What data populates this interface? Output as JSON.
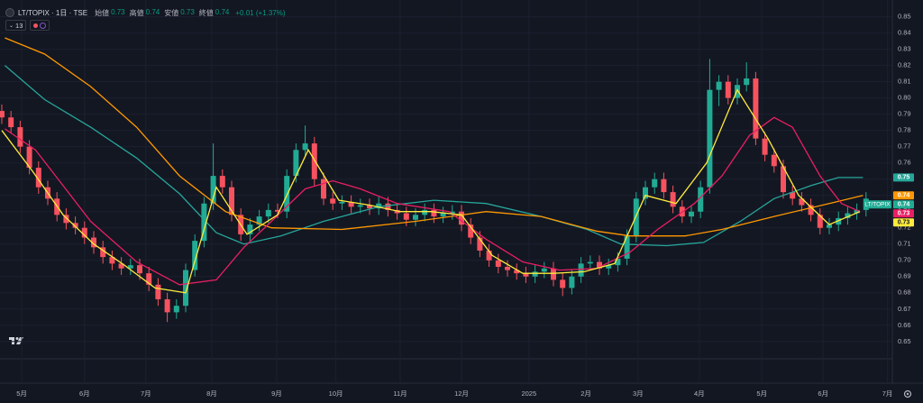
{
  "chart_data": {
    "type": "candlestick",
    "title": "LT/TOPIX · 1日 · TSE",
    "header_fields": [
      {
        "label": "始値",
        "value": "0.73"
      },
      {
        "label": "高値",
        "value": "0.74"
      },
      {
        "label": "安値",
        "value": "0.73"
      },
      {
        "label": "終値",
        "value": "0.74"
      }
    ],
    "change": "+0.01 (+1.37%)",
    "indicator": "13",
    "symbol_tag": "LT/TOPIX",
    "grid": true,
    "xlim": [
      0,
      290
    ],
    "ylim": [
      0.641,
      0.857
    ],
    "xticks": [
      {
        "value": 6.5,
        "label": "5月"
      },
      {
        "value": 27,
        "label": "6月"
      },
      {
        "value": 47,
        "label": "7月"
      },
      {
        "value": 68.5,
        "label": "8月"
      },
      {
        "value": 89.7,
        "label": "9月"
      },
      {
        "value": 109,
        "label": "10月"
      },
      {
        "value": 130,
        "label": "11月"
      },
      {
        "value": 150,
        "label": "12月"
      },
      {
        "value": 172,
        "label": "2025"
      },
      {
        "value": 190.6,
        "label": "2月"
      },
      {
        "value": 207.6,
        "label": "3月"
      },
      {
        "value": 227.6,
        "label": "4月"
      },
      {
        "value": 248,
        "label": "5月"
      },
      {
        "value": 268,
        "label": "6月"
      },
      {
        "value": 289,
        "label": "7月"
      }
    ],
    "yticks": [
      0.65,
      0.66,
      0.67,
      0.68,
      0.69,
      {
        "value": 0.7,
        "label": "0.70"
      },
      0.71,
      0.72,
      0.73,
      0.74,
      0.75,
      0.76,
      0.77,
      0.78,
      0.79,
      {
        "value": 0.8,
        "label": "0.80"
      },
      0.81,
      0.82,
      0.83,
      0.84,
      0.85
    ],
    "candles": {
      "up_color": "#22ab94",
      "down_color": "#f7525f",
      "last_label": "0.74",
      "x": [
        0,
        3,
        6,
        9,
        12,
        15,
        18,
        21,
        24,
        27,
        30,
        33,
        36,
        39,
        42,
        45,
        48,
        51,
        54,
        57,
        60,
        63,
        66,
        69,
        72,
        75,
        78,
        81,
        84,
        87,
        90,
        93,
        96,
        99,
        102,
        105,
        108,
        111,
        114,
        117,
        120,
        123,
        126,
        129,
        132,
        135,
        138,
        141,
        144,
        147,
        150,
        153,
        156,
        159,
        162,
        165,
        168,
        171,
        174,
        177,
        180,
        183,
        186,
        189,
        192,
        195,
        198,
        201,
        204,
        207,
        210,
        213,
        216,
        219,
        222,
        225,
        228,
        231,
        234,
        237,
        240,
        243,
        246,
        249,
        252,
        255,
        258,
        261,
        264,
        267,
        270,
        273,
        276,
        279,
        282
      ],
      "open": [
        0.792,
        0.788,
        0.782,
        0.77,
        0.757,
        0.745,
        0.738,
        0.728,
        0.723,
        0.72,
        0.714,
        0.708,
        0.702,
        0.698,
        0.695,
        0.697,
        0.692,
        0.685,
        0.676,
        0.668,
        0.672,
        0.694,
        0.712,
        0.735,
        0.752,
        0.745,
        0.728,
        0.716,
        0.722,
        0.727,
        0.731,
        0.73,
        0.752,
        0.768,
        0.772,
        0.75,
        0.738,
        0.735,
        0.736,
        0.733,
        0.734,
        0.732,
        0.735,
        0.731,
        0.729,
        0.725,
        0.728,
        0.731,
        0.727,
        0.729,
        0.73,
        0.722,
        0.714,
        0.706,
        0.7,
        0.696,
        0.694,
        0.692,
        0.69,
        0.693,
        0.695,
        0.688,
        0.683,
        0.69,
        0.698,
        0.699,
        0.695,
        0.697,
        0.701,
        0.715,
        0.738,
        0.745,
        0.75,
        0.742,
        0.733,
        0.727,
        0.73,
        0.745,
        0.805,
        0.81,
        0.8,
        0.808,
        0.812,
        0.775,
        0.765,
        0.758,
        0.742,
        0.738,
        0.734,
        0.728,
        0.72,
        0.722,
        0.726,
        0.729,
        0.731
      ],
      "high": [
        0.796,
        0.792,
        0.786,
        0.774,
        0.761,
        0.749,
        0.742,
        0.732,
        0.727,
        0.724,
        0.718,
        0.712,
        0.706,
        0.702,
        0.701,
        0.701,
        0.696,
        0.689,
        0.68,
        0.676,
        0.698,
        0.716,
        0.739,
        0.772,
        0.756,
        0.749,
        0.732,
        0.726,
        0.731,
        0.735,
        0.735,
        0.756,
        0.772,
        0.783,
        0.776,
        0.754,
        0.742,
        0.74,
        0.74,
        0.738,
        0.738,
        0.739,
        0.739,
        0.735,
        0.733,
        0.732,
        0.735,
        0.735,
        0.733,
        0.734,
        0.734,
        0.726,
        0.718,
        0.71,
        0.704,
        0.7,
        0.698,
        0.696,
        0.697,
        0.699,
        0.699,
        0.692,
        0.694,
        0.702,
        0.703,
        0.703,
        0.701,
        0.705,
        0.719,
        0.742,
        0.749,
        0.754,
        0.754,
        0.746,
        0.737,
        0.734,
        0.749,
        0.824,
        0.814,
        0.814,
        0.812,
        0.822,
        0.816,
        0.779,
        0.769,
        0.762,
        0.746,
        0.742,
        0.738,
        0.732,
        0.726,
        0.73,
        0.733,
        0.735,
        0.742
      ],
      "low": [
        0.784,
        0.778,
        0.766,
        0.753,
        0.741,
        0.734,
        0.724,
        0.719,
        0.716,
        0.71,
        0.704,
        0.698,
        0.694,
        0.691,
        0.691,
        0.688,
        0.681,
        0.672,
        0.662,
        0.664,
        0.668,
        0.69,
        0.708,
        0.731,
        0.741,
        0.724,
        0.712,
        0.712,
        0.718,
        0.723,
        0.726,
        0.726,
        0.748,
        0.764,
        0.746,
        0.734,
        0.731,
        0.731,
        0.729,
        0.729,
        0.728,
        0.728,
        0.727,
        0.725,
        0.721,
        0.721,
        0.724,
        0.723,
        0.723,
        0.725,
        0.718,
        0.71,
        0.702,
        0.696,
        0.692,
        0.69,
        0.688,
        0.686,
        0.686,
        0.689,
        0.684,
        0.678,
        0.679,
        0.686,
        0.694,
        0.691,
        0.691,
        0.693,
        0.697,
        0.711,
        0.734,
        0.741,
        0.738,
        0.729,
        0.723,
        0.723,
        0.726,
        0.741,
        0.795,
        0.796,
        0.796,
        0.804,
        0.771,
        0.761,
        0.754,
        0.738,
        0.734,
        0.73,
        0.724,
        0.716,
        0.716,
        0.718,
        0.722,
        0.725,
        0.727
      ],
      "close": [
        0.788,
        0.782,
        0.77,
        0.757,
        0.745,
        0.738,
        0.728,
        0.723,
        0.72,
        0.714,
        0.708,
        0.702,
        0.698,
        0.695,
        0.697,
        0.692,
        0.685,
        0.676,
        0.668,
        0.672,
        0.694,
        0.712,
        0.735,
        0.752,
        0.745,
        0.728,
        0.716,
        0.722,
        0.727,
        0.731,
        0.73,
        0.752,
        0.768,
        0.772,
        0.75,
        0.738,
        0.735,
        0.736,
        0.733,
        0.734,
        0.732,
        0.735,
        0.731,
        0.729,
        0.725,
        0.728,
        0.731,
        0.727,
        0.729,
        0.73,
        0.722,
        0.714,
        0.706,
        0.7,
        0.696,
        0.694,
        0.692,
        0.69,
        0.693,
        0.695,
        0.688,
        0.683,
        0.69,
        0.698,
        0.699,
        0.695,
        0.697,
        0.701,
        0.715,
        0.738,
        0.745,
        0.75,
        0.742,
        0.733,
        0.727,
        0.73,
        0.745,
        0.805,
        0.81,
        0.8,
        0.808,
        0.812,
        0.775,
        0.765,
        0.758,
        0.742,
        0.738,
        0.734,
        0.728,
        0.72,
        0.722,
        0.726,
        0.729,
        0.731,
        0.738
      ]
    },
    "lines": [
      {
        "color": "#26a69a",
        "last_label": "0.75",
        "x": [
          1,
          14,
          29,
          44,
          58,
          70,
          79,
          91,
          105,
          123,
          141,
          158,
          176,
          191,
          202,
          217,
          229,
          241,
          252,
          264,
          273,
          281
        ],
        "values": [
          0.82,
          0.799,
          0.782,
          0.763,
          0.741,
          0.717,
          0.71,
          0.715,
          0.724,
          0.733,
          0.737,
          0.735,
          0.727,
          0.719,
          0.71,
          0.709,
          0.711,
          0.724,
          0.738,
          0.746,
          0.751,
          0.751
        ]
      },
      {
        "color": "#ff9800",
        "last_label": "0.74",
        "x": [
          1,
          14,
          29,
          44,
          58,
          73,
          88,
          111,
          135,
          158,
          176,
          194,
          205,
          223,
          235,
          252,
          270,
          281
        ],
        "values": [
          0.837,
          0.827,
          0.807,
          0.782,
          0.752,
          0.73,
          0.72,
          0.719,
          0.724,
          0.73,
          0.727,
          0.718,
          0.715,
          0.715,
          0.719,
          0.727,
          0.735,
          0.74
        ]
      },
      {
        "color": "#e91e63",
        "last_label": "0.73",
        "x": [
          1,
          11,
          20,
          29,
          44,
          58,
          70,
          79,
          88,
          99,
          108,
          117,
          129,
          146,
          158,
          170,
          182,
          194,
          205,
          214,
          226,
          235,
          244,
          252,
          258,
          267,
          274,
          280
        ],
        "values": [
          0.781,
          0.768,
          0.746,
          0.724,
          0.699,
          0.685,
          0.688,
          0.708,
          0.724,
          0.744,
          0.749,
          0.744,
          0.735,
          0.73,
          0.713,
          0.699,
          0.694,
          0.695,
          0.705,
          0.719,
          0.735,
          0.752,
          0.777,
          0.788,
          0.782,
          0.752,
          0.735,
          0.73
        ]
      },
      {
        "color": "#ffeb3b",
        "last_label": "0.73",
        "x": [
          0,
          10,
          20,
          30,
          40,
          50,
          60,
          70,
          80,
          90,
          100,
          110,
          120,
          130,
          140,
          150,
          160,
          170,
          180,
          190,
          200,
          210,
          220,
          230,
          240,
          250,
          260,
          270,
          280
        ],
        "values": [
          0.78,
          0.755,
          0.728,
          0.71,
          0.697,
          0.683,
          0.68,
          0.745,
          0.716,
          0.728,
          0.768,
          0.737,
          0.734,
          0.73,
          0.73,
          0.728,
          0.703,
          0.692,
          0.692,
          0.693,
          0.698,
          0.74,
          0.735,
          0.76,
          0.805,
          0.775,
          0.74,
          0.722,
          0.73
        ]
      }
    ]
  }
}
